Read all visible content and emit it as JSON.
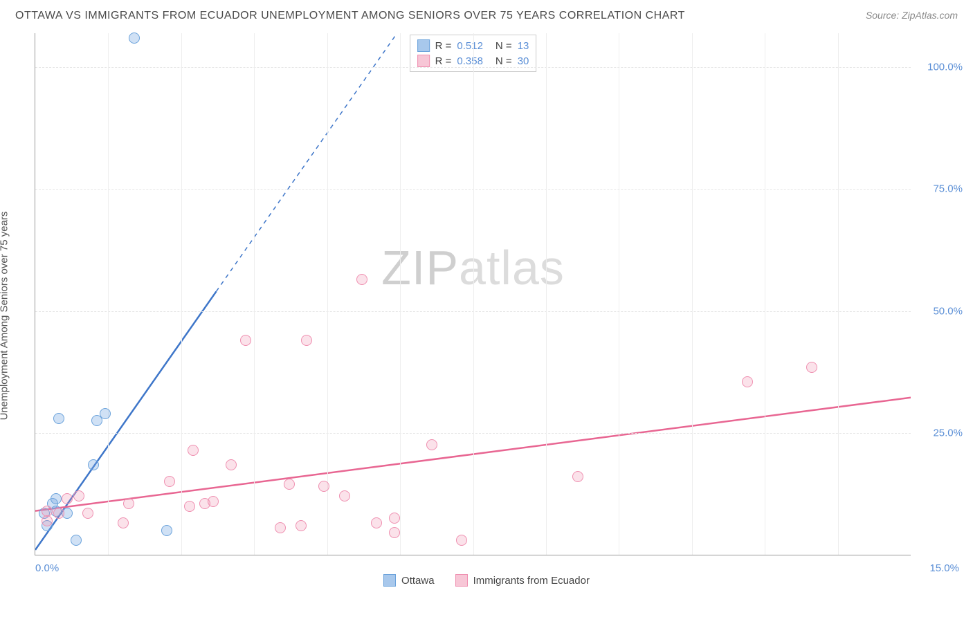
{
  "title": "OTTAWA VS IMMIGRANTS FROM ECUADOR UNEMPLOYMENT AMONG SENIORS OVER 75 YEARS CORRELATION CHART",
  "source": "Source: ZipAtlas.com",
  "ylabel": "Unemployment Among Seniors over 75 years",
  "watermark_bold": "ZIP",
  "watermark_light": "atlas",
  "xlim": [
    0.0,
    15.0
  ],
  "ylim": [
    0.0,
    107.0
  ],
  "y_ticks": [
    {
      "v": 25.0,
      "label": "25.0%"
    },
    {
      "v": 50.0,
      "label": "50.0%"
    },
    {
      "v": 75.0,
      "label": "75.0%"
    },
    {
      "v": 100.0,
      "label": "100.0%"
    }
  ],
  "x_left_label": "0.0%",
  "x_right_label": "15.0%",
  "x_grid_step": 1.25,
  "series": [
    {
      "name": "Ottawa",
      "color_fill": "#a8c8ec",
      "color_stroke": "#6aa2db",
      "marker_class": "marker-blue",
      "R": "0.512",
      "N": "13",
      "trend": {
        "m": 17.1,
        "b": 1.0,
        "solid_to_x": 3.1,
        "color": "#3e76c9"
      },
      "points": [
        {
          "x": 0.15,
          "y": 8.5
        },
        {
          "x": 0.2,
          "y": 6.0
        },
        {
          "x": 0.3,
          "y": 10.5
        },
        {
          "x": 0.35,
          "y": 9.0
        },
        {
          "x": 0.35,
          "y": 11.5
        },
        {
          "x": 0.4,
          "y": 28.0
        },
        {
          "x": 0.55,
          "y": 8.5
        },
        {
          "x": 0.7,
          "y": 3.0
        },
        {
          "x": 1.0,
          "y": 18.5
        },
        {
          "x": 1.05,
          "y": 27.5
        },
        {
          "x": 1.2,
          "y": 29.0
        },
        {
          "x": 1.7,
          "y": 106.0
        },
        {
          "x": 2.25,
          "y": 5.0
        }
      ]
    },
    {
      "name": "Immigrants from Ecuador",
      "color_fill": "#f7c6d6",
      "color_stroke": "#ef8fb0",
      "marker_class": "marker-pink",
      "R": "0.358",
      "N": "30",
      "trend": {
        "m": 1.55,
        "b": 9.0,
        "solid_to_x": 15.0,
        "color": "#e86692"
      },
      "points": [
        {
          "x": 0.2,
          "y": 7.0
        },
        {
          "x": 0.2,
          "y": 9.0
        },
        {
          "x": 0.4,
          "y": 8.5
        },
        {
          "x": 0.55,
          "y": 11.5
        },
        {
          "x": 0.75,
          "y": 12.0
        },
        {
          "x": 0.9,
          "y": 8.5
        },
        {
          "x": 1.5,
          "y": 6.5
        },
        {
          "x": 1.6,
          "y": 10.5
        },
        {
          "x": 2.3,
          "y": 15.0
        },
        {
          "x": 2.65,
          "y": 10.0
        },
        {
          "x": 2.7,
          "y": 21.5
        },
        {
          "x": 2.9,
          "y": 10.5
        },
        {
          "x": 3.05,
          "y": 11.0
        },
        {
          "x": 3.35,
          "y": 18.5
        },
        {
          "x": 3.6,
          "y": 44.0
        },
        {
          "x": 4.2,
          "y": 5.5
        },
        {
          "x": 4.35,
          "y": 14.5
        },
        {
          "x": 4.55,
          "y": 6.0
        },
        {
          "x": 4.65,
          "y": 44.0
        },
        {
          "x": 4.95,
          "y": 14.0
        },
        {
          "x": 5.3,
          "y": 12.0
        },
        {
          "x": 5.6,
          "y": 56.5
        },
        {
          "x": 5.85,
          "y": 6.5
        },
        {
          "x": 6.15,
          "y": 4.5
        },
        {
          "x": 6.15,
          "y": 7.5
        },
        {
          "x": 6.8,
          "y": 22.5
        },
        {
          "x": 7.3,
          "y": 3.0
        },
        {
          "x": 9.3,
          "y": 16.0
        },
        {
          "x": 12.2,
          "y": 35.5
        },
        {
          "x": 13.3,
          "y": 38.5
        }
      ]
    }
  ],
  "legend_box": {
    "rows": [
      {
        "swatch_fill": "#a8c8ec",
        "swatch_stroke": "#6aa2db",
        "R_label": "R =",
        "R": "0.512",
        "N_label": "N =",
        "N": "13"
      },
      {
        "swatch_fill": "#f7c6d6",
        "swatch_stroke": "#ef8fb0",
        "R_label": "R =",
        "R": "0.358",
        "N_label": "N =",
        "N": "30"
      }
    ]
  },
  "bottom_legend": [
    {
      "swatch_fill": "#a8c8ec",
      "swatch_stroke": "#6aa2db",
      "label": "Ottawa"
    },
    {
      "swatch_fill": "#f7c6d6",
      "swatch_stroke": "#ef8fb0",
      "label": "Immigrants from Ecuador"
    }
  ]
}
